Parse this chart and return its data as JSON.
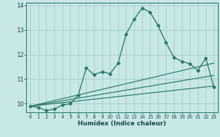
{
  "title": "",
  "xlabel": "Humidex (Indice chaleur)",
  "bg_color": "#c8e8e8",
  "grid_color": "#a8cccc",
  "line_color": "#2a7a6a",
  "xlim": [
    -0.5,
    23.5
  ],
  "ylim": [
    9.65,
    14.1
  ],
  "yticks": [
    10,
    11,
    12,
    13,
    14
  ],
  "xticks": [
    0,
    1,
    2,
    3,
    4,
    5,
    6,
    7,
    8,
    9,
    10,
    11,
    12,
    13,
    14,
    15,
    16,
    17,
    18,
    19,
    20,
    21,
    22,
    23
  ],
  "main_x": [
    0,
    1,
    2,
    3,
    4,
    5,
    6,
    7,
    8,
    9,
    10,
    11,
    12,
    13,
    14,
    15,
    16,
    17,
    18,
    19,
    20,
    21,
    22,
    23
  ],
  "main_y": [
    9.9,
    9.85,
    9.72,
    9.78,
    9.95,
    10.0,
    10.35,
    11.45,
    11.18,
    11.3,
    11.22,
    11.65,
    12.82,
    13.42,
    13.88,
    13.72,
    13.18,
    12.48,
    11.88,
    11.72,
    11.62,
    11.35,
    11.85,
    10.68
  ],
  "line1_x": [
    0,
    23
  ],
  "line1_y": [
    9.9,
    11.65
  ],
  "line2_x": [
    0,
    23
  ],
  "line2_y": [
    9.9,
    10.72
  ],
  "line3_x": [
    0,
    23
  ],
  "line3_y": [
    9.9,
    11.15
  ]
}
